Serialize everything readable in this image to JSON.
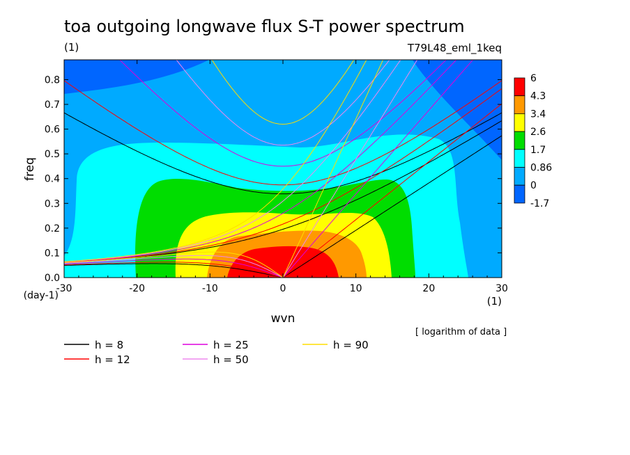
{
  "chart_data": {
    "type": "heatmap",
    "title": "toa outgoing longwave flux S-T power spectrum",
    "units_left": "(1)",
    "run_label": "T79L48_eml_1keq",
    "xlabel": "wvn",
    "ylabel": "freq",
    "x_units": "(1)",
    "y_units": "(day-1)",
    "xlim": [
      -30,
      30
    ],
    "ylim": [
      0,
      0.88
    ],
    "x_ticks": [
      "-30",
      "-20",
      "-10",
      "0",
      "10",
      "20",
      "30"
    ],
    "x_tick_values": [
      -30,
      -20,
      -10,
      0,
      10,
      20,
      30
    ],
    "y_ticks": [
      "0.0",
      "0.1",
      "0.2",
      "0.3",
      "0.4",
      "0.5",
      "0.6",
      "0.7",
      "0.8"
    ],
    "y_tick_values": [
      0,
      0.1,
      0.2,
      0.3,
      0.4,
      0.5,
      0.6,
      0.7,
      0.8
    ],
    "colorbar": {
      "labels": [
        "6",
        "4.3",
        "3.4",
        "2.6",
        "1.7",
        "0.86",
        "0",
        "-1.7"
      ],
      "colors": [
        "#ff0000",
        "#ff9900",
        "#ffff00",
        "#00dd00",
        "#00ffff",
        "#00aaff",
        "#0066ff"
      ]
    },
    "note": "[ logarithm of data ]",
    "series": [
      {
        "name": "h =  8",
        "value": 8,
        "color": "#000000"
      },
      {
        "name": "h = 12",
        "value": 12,
        "color": "#ff0000"
      },
      {
        "name": "h = 25",
        "value": 25,
        "color": "#dd00dd"
      },
      {
        "name": "h = 50",
        "value": 50,
        "color": "#ee88ee"
      },
      {
        "name": "h = 90",
        "value": 90,
        "color": "#ffdd00"
      }
    ]
  }
}
